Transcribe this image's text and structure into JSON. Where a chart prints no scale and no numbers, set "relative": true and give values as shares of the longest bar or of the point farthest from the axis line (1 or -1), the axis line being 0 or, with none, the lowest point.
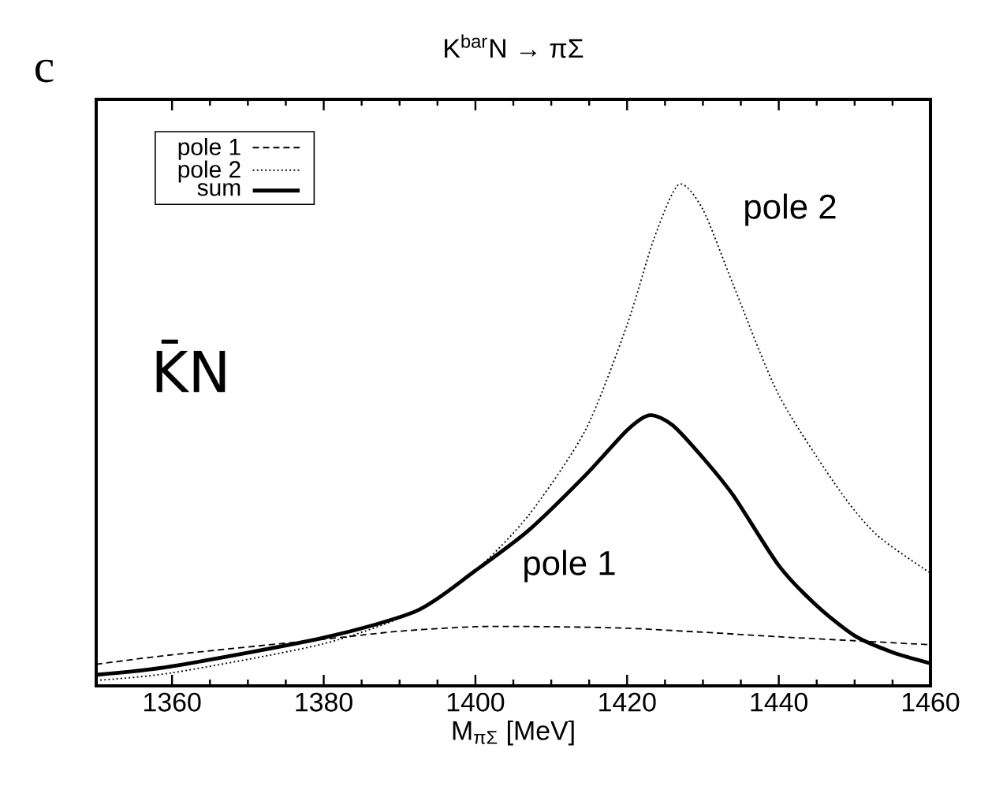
{
  "chart_data": {
    "type": "line",
    "title": "K$^{bar}$N → πΣ",
    "xlabel": "M$_{πΣ}$ [MeV]",
    "relative": true,
    "xlim": [
      1350,
      1460
    ],
    "xticks": [
      1360,
      1380,
      1400,
      1420,
      1440,
      1460
    ],
    "tick_labels": "x",
    "legend": "top left",
    "grid": false,
    "annotations": [
      "c",
      "K̄N",
      "pole 2",
      "pole 1"
    ],
    "series": [
      {
        "name": "pole 1",
        "color": "#000000",
        "line_style": "dashed",
        "x": [
          1350,
          1360,
          1380,
          1390,
          1400,
          1410,
          1420,
          1430,
          1440,
          1450,
          1460
        ],
        "values": [
          0.043,
          0.062,
          0.093,
          0.109,
          0.118,
          0.118,
          0.115,
          0.107,
          0.098,
          0.09,
          0.082
        ]
      },
      {
        "name": "pole 2",
        "color": "#000000",
        "line_style": "dotted",
        "x": [
          1350,
          1360,
          1380,
          1392.3,
          1400,
          1407,
          1414.5,
          1420,
          1423.5,
          1426.8,
          1430,
          1434,
          1440,
          1448,
          1453,
          1460
        ],
        "values": [
          0.011,
          0.026,
          0.084,
          0.15,
          0.23,
          0.34,
          0.51,
          0.72,
          0.89,
          1.0,
          0.95,
          0.8,
          0.58,
          0.39,
          0.3,
          0.225
        ]
      },
      {
        "name": "sum",
        "color": "#000000",
        "line_style": "solid",
        "x": [
          1350,
          1360,
          1380,
          1392.3,
          1400,
          1407,
          1414.5,
          1420,
          1423,
          1426,
          1430,
          1434,
          1440,
          1445,
          1450,
          1455,
          1460
        ],
        "values": [
          0.022,
          0.039,
          0.096,
          0.15,
          0.23,
          0.31,
          0.42,
          0.51,
          0.54,
          0.52,
          0.455,
          0.38,
          0.24,
          0.16,
          0.1,
          0.067,
          0.045
        ]
      }
    ]
  }
}
